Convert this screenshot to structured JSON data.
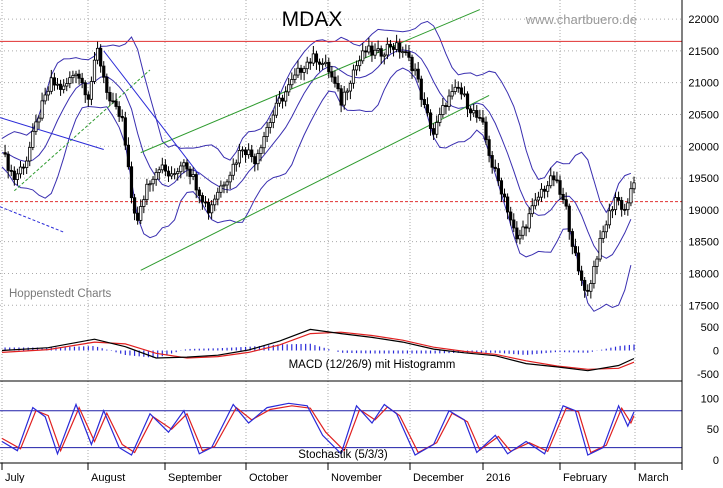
{
  "header": {
    "title": "MDAX",
    "source": "www.chartbuero.de",
    "credit": "Hoppenstedt Charts"
  },
  "colors": {
    "candle": "#000000",
    "bollinger": "#3a2fb0",
    "channel": "#2e9b2e",
    "trend": "#2a2ad8",
    "resistance": "#e03030",
    "support": "#e03030",
    "macd_line": "#000000",
    "signal_line": "#e02020",
    "histogram": "#2a2ad8",
    "stoch_k": "#2a2ad8",
    "stoch_d": "#e02020",
    "stoch_levels": "#1f1fa8",
    "grid": "#aaaaaa"
  },
  "chart_data": [
    {
      "type": "candlestick",
      "title": "MDAX",
      "x_labels": [
        "July",
        "August",
        "September",
        "October",
        "November",
        "December",
        "2016",
        "February",
        "March"
      ],
      "y_ticks": [
        17500,
        18000,
        18500,
        19000,
        19500,
        20000,
        20500,
        21000,
        21500,
        22000
      ],
      "ylim": [
        17300,
        22300
      ],
      "grid": true,
      "close_path": [
        {
          "t": 0,
          "v": 19900
        },
        {
          "t": 4,
          "v": 19500
        },
        {
          "t": 8,
          "v": 19800
        },
        {
          "t": 12,
          "v": 20500
        },
        {
          "t": 16,
          "v": 21000
        },
        {
          "t": 20,
          "v": 20900
        },
        {
          "t": 24,
          "v": 21200
        },
        {
          "t": 28,
          "v": 20800
        },
        {
          "t": 31,
          "v": 21500
        },
        {
          "t": 35,
          "v": 20700
        },
        {
          "t": 39,
          "v": 20400
        },
        {
          "t": 42,
          "v": 19200
        },
        {
          "t": 44,
          "v": 18800
        },
        {
          "t": 47,
          "v": 19400
        },
        {
          "t": 51,
          "v": 19700
        },
        {
          "t": 55,
          "v": 19500
        },
        {
          "t": 59,
          "v": 19800
        },
        {
          "t": 63,
          "v": 19400
        },
        {
          "t": 67,
          "v": 19000
        },
        {
          "t": 70,
          "v": 19300
        },
        {
          "t": 74,
          "v": 19600
        },
        {
          "t": 78,
          "v": 20000
        },
        {
          "t": 82,
          "v": 19800
        },
        {
          "t": 86,
          "v": 20300
        },
        {
          "t": 90,
          "v": 20700
        },
        {
          "t": 94,
          "v": 21000
        },
        {
          "t": 98,
          "v": 21300
        },
        {
          "t": 102,
          "v": 21400
        },
        {
          "t": 106,
          "v": 21200
        },
        {
          "t": 110,
          "v": 20700
        },
        {
          "t": 114,
          "v": 21200
        },
        {
          "t": 118,
          "v": 21500
        },
        {
          "t": 122,
          "v": 21450
        },
        {
          "t": 126,
          "v": 21600
        },
        {
          "t": 130,
          "v": 21500
        },
        {
          "t": 134,
          "v": 21200
        },
        {
          "t": 137,
          "v": 20600
        },
        {
          "t": 140,
          "v": 20200
        },
        {
          "t": 144,
          "v": 20700
        },
        {
          "t": 148,
          "v": 20900
        },
        {
          "t": 152,
          "v": 20600
        },
        {
          "t": 156,
          "v": 20300
        },
        {
          "t": 159,
          "v": 19700
        },
        {
          "t": 163,
          "v": 19200
        },
        {
          "t": 167,
          "v": 18500
        },
        {
          "t": 171,
          "v": 18900
        },
        {
          "t": 175,
          "v": 19300
        },
        {
          "t": 179,
          "v": 19500
        },
        {
          "t": 183,
          "v": 19000
        },
        {
          "t": 187,
          "v": 18000
        },
        {
          "t": 190,
          "v": 17700
        },
        {
          "t": 193,
          "v": 18300
        },
        {
          "t": 196,
          "v": 18800
        },
        {
          "t": 199,
          "v": 19200
        },
        {
          "t": 202,
          "v": 19000
        },
        {
          "t": 205,
          "v": 19400
        }
      ],
      "horizontal_lines": [
        {
          "name": "resistance",
          "value": 21650
        },
        {
          "name": "support",
          "value": 19130
        }
      ]
    },
    {
      "type": "line",
      "title": "MACD (12/26/9) mit Histogramm",
      "y_ticks": [
        -500,
        0,
        500
      ],
      "ylim": [
        -650,
        650
      ],
      "series": [
        {
          "name": "MACD",
          "points": [
            {
              "t": 0,
              "v": 0
            },
            {
              "t": 15,
              "v": 60
            },
            {
              "t": 30,
              "v": 240
            },
            {
              "t": 40,
              "v": 80
            },
            {
              "t": 50,
              "v": -160
            },
            {
              "t": 60,
              "v": -140
            },
            {
              "t": 70,
              "v": -100
            },
            {
              "t": 80,
              "v": 10
            },
            {
              "t": 90,
              "v": 200
            },
            {
              "t": 100,
              "v": 450
            },
            {
              "t": 110,
              "v": 360
            },
            {
              "t": 120,
              "v": 280
            },
            {
              "t": 130,
              "v": 180
            },
            {
              "t": 140,
              "v": 30
            },
            {
              "t": 150,
              "v": -50
            },
            {
              "t": 160,
              "v": -110
            },
            {
              "t": 170,
              "v": -280
            },
            {
              "t": 180,
              "v": -350
            },
            {
              "t": 190,
              "v": -430
            },
            {
              "t": 200,
              "v": -320
            },
            {
              "t": 205,
              "v": -170
            }
          ]
        },
        {
          "name": "Signal",
          "points": [
            {
              "t": 0,
              "v": -40
            },
            {
              "t": 15,
              "v": 20
            },
            {
              "t": 30,
              "v": 180
            },
            {
              "t": 40,
              "v": 140
            },
            {
              "t": 50,
              "v": -60
            },
            {
              "t": 60,
              "v": -160
            },
            {
              "t": 70,
              "v": -130
            },
            {
              "t": 80,
              "v": -40
            },
            {
              "t": 90,
              "v": 120
            },
            {
              "t": 100,
              "v": 360
            },
            {
              "t": 110,
              "v": 390
            },
            {
              "t": 120,
              "v": 320
            },
            {
              "t": 130,
              "v": 220
            },
            {
              "t": 140,
              "v": 70
            },
            {
              "t": 150,
              "v": -20
            },
            {
              "t": 160,
              "v": -80
            },
            {
              "t": 170,
              "v": -220
            },
            {
              "t": 180,
              "v": -330
            },
            {
              "t": 190,
              "v": -400
            },
            {
              "t": 200,
              "v": -380
            },
            {
              "t": 205,
              "v": -250
            }
          ]
        }
      ]
    },
    {
      "type": "line",
      "title": "Stochastik (5/3/3)",
      "y_ticks": [
        0,
        50,
        100
      ],
      "ylim": [
        -5,
        125
      ],
      "levels": [
        20,
        80
      ],
      "series": [
        {
          "name": "%K",
          "points": [
            {
              "t": 0,
              "v": 30
            },
            {
              "t": 5,
              "v": 15
            },
            {
              "t": 10,
              "v": 85
            },
            {
              "t": 14,
              "v": 70
            },
            {
              "t": 18,
              "v": 10
            },
            {
              "t": 24,
              "v": 90
            },
            {
              "t": 29,
              "v": 25
            },
            {
              "t": 33,
              "v": 80
            },
            {
              "t": 38,
              "v": 20
            },
            {
              "t": 42,
              "v": 8
            },
            {
              "t": 48,
              "v": 75
            },
            {
              "t": 54,
              "v": 45
            },
            {
              "t": 59,
              "v": 80
            },
            {
              "t": 64,
              "v": 10
            },
            {
              "t": 68,
              "v": 20
            },
            {
              "t": 75,
              "v": 90
            },
            {
              "t": 80,
              "v": 60
            },
            {
              "t": 86,
              "v": 85
            },
            {
              "t": 93,
              "v": 92
            },
            {
              "t": 99,
              "v": 88
            },
            {
              "t": 104,
              "v": 40
            },
            {
              "t": 110,
              "v": 10
            },
            {
              "t": 115,
              "v": 88
            },
            {
              "t": 120,
              "v": 60
            },
            {
              "t": 124,
              "v": 90
            },
            {
              "t": 128,
              "v": 75
            },
            {
              "t": 134,
              "v": 8
            },
            {
              "t": 140,
              "v": 25
            },
            {
              "t": 145,
              "v": 80
            },
            {
              "t": 150,
              "v": 65
            },
            {
              "t": 154,
              "v": 12
            },
            {
              "t": 160,
              "v": 40
            },
            {
              "t": 164,
              "v": 10
            },
            {
              "t": 170,
              "v": 30
            },
            {
              "t": 176,
              "v": 10
            },
            {
              "t": 182,
              "v": 88
            },
            {
              "t": 186,
              "v": 80
            },
            {
              "t": 190,
              "v": 8
            },
            {
              "t": 195,
              "v": 20
            },
            {
              "t": 200,
              "v": 88
            },
            {
              "t": 203,
              "v": 55
            },
            {
              "t": 205,
              "v": 78
            }
          ]
        },
        {
          "name": "%D",
          "points": [
            {
              "t": 0,
              "v": 35
            },
            {
              "t": 6,
              "v": 18
            },
            {
              "t": 11,
              "v": 80
            },
            {
              "t": 15,
              "v": 72
            },
            {
              "t": 19,
              "v": 15
            },
            {
              "t": 25,
              "v": 85
            },
            {
              "t": 30,
              "v": 30
            },
            {
              "t": 34,
              "v": 76
            },
            {
              "t": 39,
              "v": 25
            },
            {
              "t": 43,
              "v": 12
            },
            {
              "t": 49,
              "v": 70
            },
            {
              "t": 55,
              "v": 50
            },
            {
              "t": 60,
              "v": 75
            },
            {
              "t": 65,
              "v": 15
            },
            {
              "t": 69,
              "v": 22
            },
            {
              "t": 76,
              "v": 85
            },
            {
              "t": 81,
              "v": 65
            },
            {
              "t": 87,
              "v": 82
            },
            {
              "t": 94,
              "v": 88
            },
            {
              "t": 100,
              "v": 84
            },
            {
              "t": 105,
              "v": 45
            },
            {
              "t": 111,
              "v": 15
            },
            {
              "t": 116,
              "v": 82
            },
            {
              "t": 121,
              "v": 65
            },
            {
              "t": 125,
              "v": 86
            },
            {
              "t": 129,
              "v": 72
            },
            {
              "t": 135,
              "v": 12
            },
            {
              "t": 141,
              "v": 28
            },
            {
              "t": 146,
              "v": 76
            },
            {
              "t": 151,
              "v": 62
            },
            {
              "t": 155,
              "v": 16
            },
            {
              "t": 161,
              "v": 38
            },
            {
              "t": 165,
              "v": 14
            },
            {
              "t": 171,
              "v": 28
            },
            {
              "t": 177,
              "v": 14
            },
            {
              "t": 183,
              "v": 84
            },
            {
              "t": 187,
              "v": 78
            },
            {
              "t": 191,
              "v": 12
            },
            {
              "t": 196,
              "v": 24
            },
            {
              "t": 201,
              "v": 84
            },
            {
              "t": 204,
              "v": 60
            },
            {
              "t": 205,
              "v": 72
            }
          ]
        }
      ]
    }
  ]
}
